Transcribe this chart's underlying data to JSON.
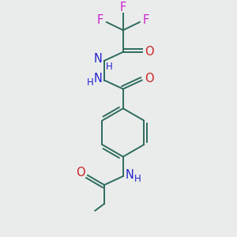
{
  "bg_color": "#eaecec",
  "bond_color": "#2d6b5e",
  "N_color": "#2222cc",
  "O_color": "#cc2222",
  "F_color": "#cc22cc",
  "font_size": 9.5,
  "bond_width": 1.4,
  "figsize": [
    3.0,
    3.0
  ],
  "dpi": 100,
  "xlim": [
    0,
    10
  ],
  "ylim": [
    0,
    10
  ]
}
